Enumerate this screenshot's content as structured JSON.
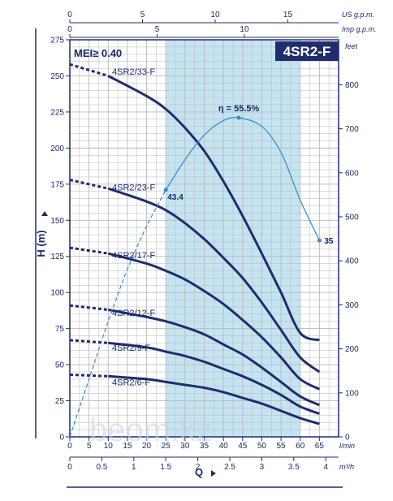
{
  "chart_data": {
    "type": "line",
    "title": "4SR2-F",
    "subtitle": "MEI≥ 0.40",
    "xlabel": "Q",
    "ylabel": "H (m)",
    "watermark": "beom.kz",
    "xlim": [
      0,
      70
    ],
    "ylim": [
      0,
      275
    ],
    "x_unit": "l/min",
    "x_ticks": [
      0,
      5,
      10,
      15,
      20,
      25,
      30,
      35,
      40,
      45,
      50,
      55,
      60,
      65
    ],
    "y_ticks": [
      0,
      25,
      50,
      75,
      100,
      125,
      150,
      175,
      200,
      225,
      250,
      275
    ],
    "x2_unit": "m³/h",
    "x2_ticks": [
      0,
      0.5,
      1,
      1.5,
      2,
      2.5,
      3,
      3.5,
      4
    ],
    "top_unit_1": "US g.p.m.",
    "top_ticks_1": [
      0,
      5,
      10,
      15
    ],
    "top_unit_2": "Imp g.p.m.",
    "top_ticks_2": [
      0,
      5,
      10
    ],
    "y2_unit": "feet",
    "y2_ticks": [
      0,
      100,
      200,
      300,
      400,
      500,
      600,
      700,
      800
    ],
    "recommended_range": [
      25,
      60
    ],
    "efficiency": {
      "label": "η = 55.5%",
      "points": [
        [
          0,
          0
        ],
        [
          5,
          40
        ],
        [
          10,
          80
        ],
        [
          15,
          116
        ],
        [
          20,
          146
        ],
        [
          25,
          171
        ],
        [
          30,
          192
        ],
        [
          35,
          209
        ],
        [
          40,
          219
        ],
        [
          44,
          221
        ],
        [
          50,
          215
        ],
        [
          55,
          197
        ],
        [
          60,
          164
        ],
        [
          65,
          136
        ]
      ],
      "start_label": "43.4",
      "end_label": "35"
    },
    "series": [
      {
        "name": "4SR2/33-F",
        "values": [
          [
            0,
            258
          ],
          [
            10,
            250
          ],
          [
            20,
            236
          ],
          [
            25,
            227
          ],
          [
            30,
            214
          ],
          [
            35,
            198
          ],
          [
            40,
            177
          ],
          [
            45,
            153
          ],
          [
            50,
            127
          ],
          [
            55,
            100
          ],
          [
            60,
            72
          ],
          [
            65,
            67
          ]
        ]
      },
      {
        "name": "4SR2/23-F",
        "values": [
          [
            0,
            178
          ],
          [
            10,
            172
          ],
          [
            20,
            163
          ],
          [
            25,
            157
          ],
          [
            30,
            148
          ],
          [
            35,
            137
          ],
          [
            40,
            124
          ],
          [
            45,
            110
          ],
          [
            50,
            93
          ],
          [
            55,
            74
          ],
          [
            60,
            55
          ],
          [
            65,
            45
          ]
        ]
      },
      {
        "name": "4SR2/17-F",
        "values": [
          [
            0,
            131
          ],
          [
            10,
            127
          ],
          [
            20,
            120
          ],
          [
            25,
            115
          ],
          [
            30,
            109
          ],
          [
            35,
            101
          ],
          [
            40,
            92
          ],
          [
            45,
            81
          ],
          [
            50,
            69
          ],
          [
            55,
            55
          ],
          [
            60,
            40
          ],
          [
            65,
            33
          ]
        ]
      },
      {
        "name": "4SR2/12-F",
        "values": [
          [
            0,
            91
          ],
          [
            10,
            88
          ],
          [
            20,
            83
          ],
          [
            25,
            80
          ],
          [
            30,
            76
          ],
          [
            35,
            71
          ],
          [
            40,
            64
          ],
          [
            45,
            57
          ],
          [
            50,
            48
          ],
          [
            55,
            38
          ],
          [
            60,
            28
          ],
          [
            65,
            22
          ]
        ]
      },
      {
        "name": "4SR2/9-F",
        "values": [
          [
            0,
            67
          ],
          [
            10,
            65
          ],
          [
            20,
            62
          ],
          [
            25,
            59
          ],
          [
            30,
            56
          ],
          [
            35,
            52
          ],
          [
            40,
            47
          ],
          [
            45,
            42
          ],
          [
            50,
            36
          ],
          [
            55,
            29
          ],
          [
            60,
            21
          ],
          [
            65,
            16
          ]
        ]
      },
      {
        "name": "4SR2/6-F",
        "values": [
          [
            0,
            43
          ],
          [
            10,
            42
          ],
          [
            20,
            40
          ],
          [
            25,
            38
          ],
          [
            30,
            36
          ],
          [
            35,
            34
          ],
          [
            40,
            31
          ],
          [
            45,
            27
          ],
          [
            50,
            23
          ],
          [
            55,
            18
          ],
          [
            60,
            13
          ],
          [
            65,
            9
          ]
        ]
      }
    ],
    "grid": true,
    "colors": {
      "curve": "#1f2d6e",
      "efficiency": "#2b8fd0",
      "band": "#c5e4f2",
      "grid": "#b9b9b9",
      "title_bg": "#1f2d6e",
      "title_fg": "#ffffff",
      "axis_text": "#1a2a6c"
    }
  }
}
